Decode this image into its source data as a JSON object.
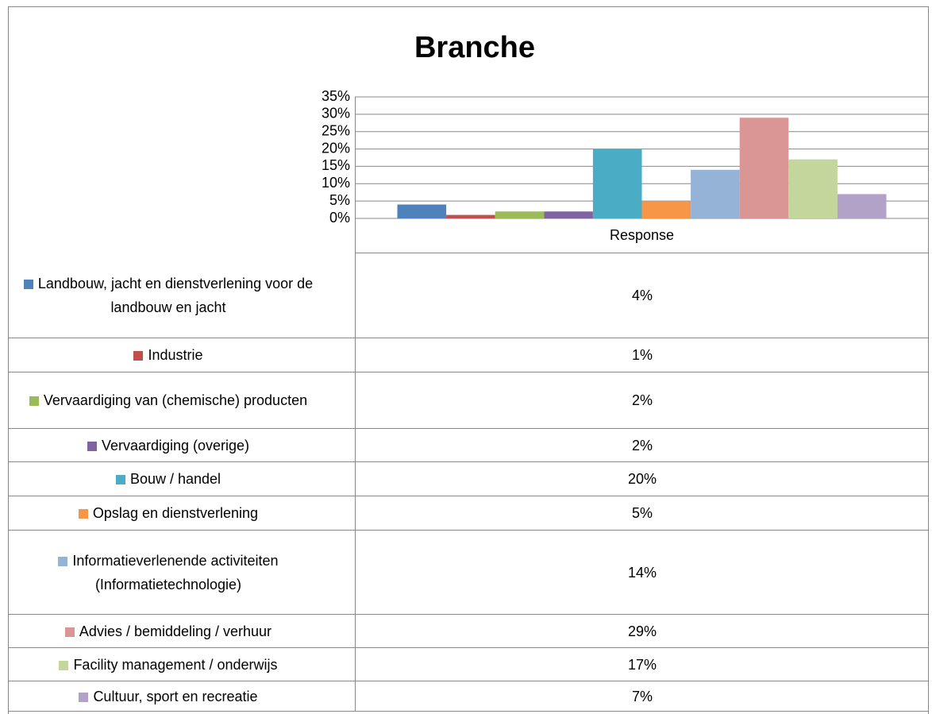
{
  "chart_data": {
    "type": "bar",
    "title": "Branche",
    "categories": [
      "Response"
    ],
    "ylim": [
      0,
      35
    ],
    "yticks": [
      {
        "value": 0,
        "label": "0%"
      },
      {
        "value": 5,
        "label": "5%"
      },
      {
        "value": 10,
        "label": "10%"
      },
      {
        "value": 15,
        "label": "15%"
      },
      {
        "value": 20,
        "label": "20%"
      },
      {
        "value": 25,
        "label": "25%"
      },
      {
        "value": 30,
        "label": "30%"
      },
      {
        "value": 35,
        "label": "35%"
      }
    ],
    "grid": true,
    "series": [
      {
        "name": "Landbouw, jacht en dienstverlening voor de landbouw en jacht",
        "color": "#4f81bd",
        "values": [
          4
        ],
        "value_labels": [
          "4%"
        ]
      },
      {
        "name": "Industrie",
        "color": "#c0504d",
        "values": [
          1
        ],
        "value_labels": [
          "1%"
        ]
      },
      {
        "name": "Vervaardiging van (chemische) producten",
        "color": "#9bbb59",
        "values": [
          2
        ],
        "value_labels": [
          "2%"
        ]
      },
      {
        "name": "Vervaardiging (overige)",
        "color": "#8064a2",
        "values": [
          2
        ],
        "value_labels": [
          "2%"
        ]
      },
      {
        "name": "Bouw / handel",
        "color": "#4bacc6",
        "values": [
          20
        ],
        "value_labels": [
          "20%"
        ]
      },
      {
        "name": "Opslag en dienstverlening",
        "color": "#f79646",
        "values": [
          5
        ],
        "value_labels": [
          "5%"
        ]
      },
      {
        "name": "Informatieverlenende activiteiten (Informatietechnologie)",
        "color": "#95b3d7",
        "values": [
          14
        ],
        "value_labels": [
          "14%"
        ]
      },
      {
        "name": "Advies / bemiddeling / verhuur",
        "color": "#d99694",
        "values": [
          29
        ],
        "value_labels": [
          "29%"
        ]
      },
      {
        "name": "Facility management / onderwijs",
        "color": "#c3d69b",
        "values": [
          17
        ],
        "value_labels": [
          "17%"
        ]
      },
      {
        "name": "Cultuur, sport en recreatie",
        "color": "#b3a2c7",
        "values": [
          7
        ],
        "value_labels": [
          "7%"
        ]
      }
    ]
  }
}
